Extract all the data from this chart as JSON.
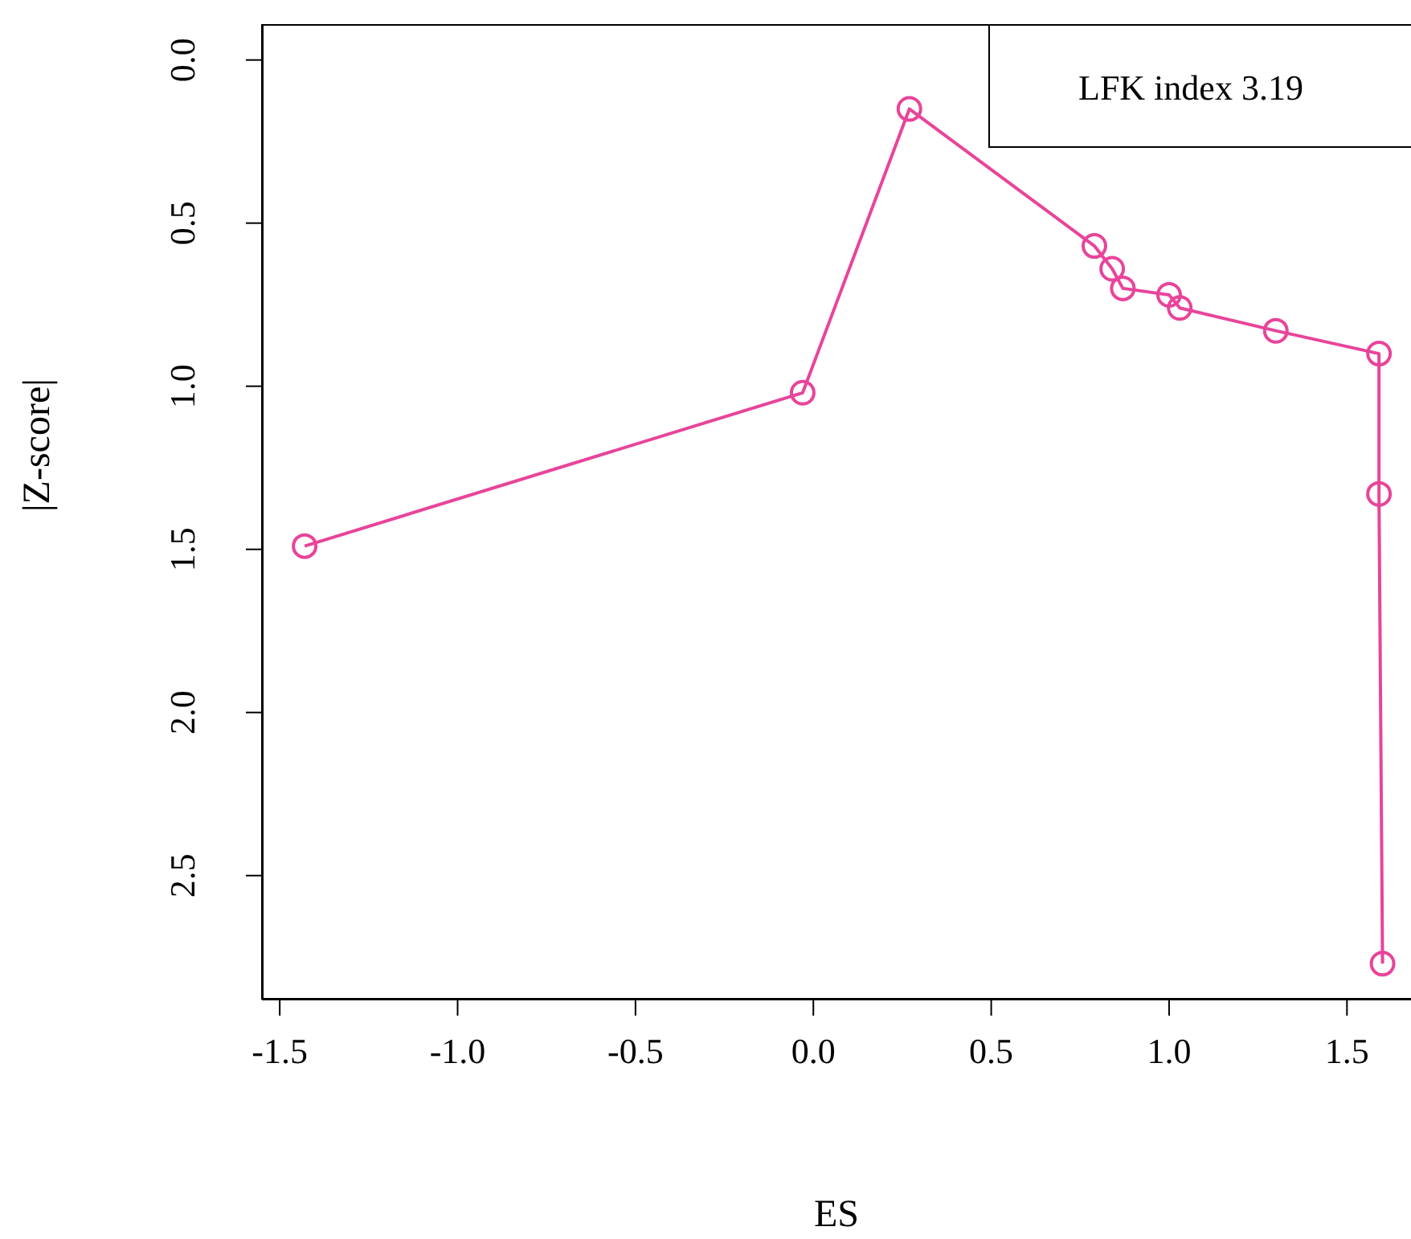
{
  "chart_data": {
    "type": "line",
    "xlabel": "ES",
    "ylabel": "|Z-score|",
    "annotations": [
      "LFK index 3.19"
    ],
    "marker": "circle",
    "grid": false,
    "legend": false,
    "xlim": [
      -1.55,
      1.68
    ],
    "xticks": [
      -1.5,
      {
        "value": -1,
        "label": "-1.0"
      },
      -0.5,
      {
        "value": 0,
        "label": "0.0"
      },
      0.5,
      {
        "value": 1,
        "label": "1.0"
      },
      1.5
    ],
    "ylim": [
      2.88,
      -0.11
    ],
    "yticks": [
      {
        "value": 0,
        "label": "0.0"
      },
      0.5,
      {
        "value": 1,
        "label": "1.0"
      },
      1.5,
      {
        "value": 2,
        "label": "2.0"
      },
      2.5
    ],
    "series": [
      {
        "color": "#e8449a",
        "x": [
          -1.43,
          -0.03,
          0.27,
          0.79,
          0.84,
          0.87,
          1.0,
          1.03,
          1.3,
          1.59,
          1.59,
          1.6
        ],
        "values": [
          1.49,
          1.02,
          0.15,
          0.57,
          0.64,
          0.7,
          0.72,
          0.76,
          0.83,
          0.9,
          1.33,
          2.77
        ]
      }
    ]
  }
}
